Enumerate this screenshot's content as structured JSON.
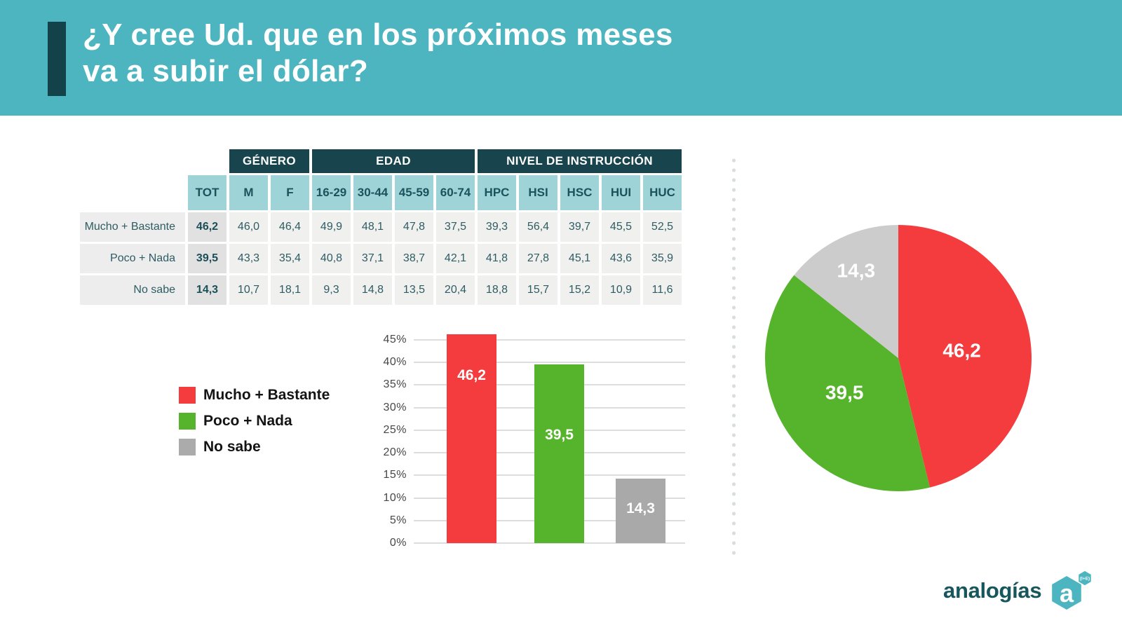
{
  "header": {
    "title_line1": "¿Y cree Ud. que en los próximos meses",
    "title_line2": "va a subir el dólar?"
  },
  "legend": {
    "items": [
      {
        "label": "Mucho + Bastante",
        "color": "#F43B3E"
      },
      {
        "label": "Poco + Nada",
        "color": "#56B42C"
      },
      {
        "label": "No sabe",
        "color": "#ABABAB"
      }
    ]
  },
  "chart_data": [
    {
      "type": "table",
      "group_headers": [
        {
          "label": "GÉNERO",
          "span": 2
        },
        {
          "label": "EDAD",
          "span": 4
        },
        {
          "label": "NIVEL DE INSTRUCCIÓN",
          "span": 5
        }
      ],
      "columns": [
        "TOT",
        "M",
        "F",
        "16-29",
        "30-44",
        "45-59",
        "60-74",
        "HPC",
        "HSI",
        "HSC",
        "HUI",
        "HUC"
      ],
      "rows": [
        {
          "label": "Mucho + Bastante",
          "values": [
            "46,2",
            "46,0",
            "46,4",
            "49,9",
            "48,1",
            "47,8",
            "37,5",
            "39,3",
            "56,4",
            "39,7",
            "45,5",
            "52,5"
          ]
        },
        {
          "label": "Poco + Nada",
          "values": [
            "39,5",
            "43,3",
            "35,4",
            "40,8",
            "37,1",
            "38,7",
            "42,1",
            "41,8",
            "27,8",
            "45,1",
            "43,6",
            "35,9"
          ]
        },
        {
          "label": "No sabe",
          "values": [
            "14,3",
            "10,7",
            "18,1",
            "9,3",
            "14,8",
            "13,5",
            "20,4",
            "18,8",
            "15,7",
            "15,2",
            "10,9",
            "11,6"
          ]
        }
      ]
    },
    {
      "type": "bar",
      "title": "",
      "xlabel": "",
      "ylabel": "",
      "categories": [
        "Mucho + Bastante",
        "Poco + Nada",
        "No sabe"
      ],
      "values": [
        46.2,
        39.5,
        14.3
      ],
      "value_labels": [
        "46,2",
        "39,5",
        "14,3"
      ],
      "colors": [
        "#F43B3E",
        "#56B42C",
        "#A9A9A9"
      ],
      "ylim": [
        0,
        45
      ],
      "ytick_step": 5,
      "ytick_suffix": "%",
      "grid": true,
      "legend_position": "left"
    },
    {
      "type": "pie",
      "labels": [
        "Mucho + Bastante",
        "Poco + Nada",
        "No sabe"
      ],
      "values": [
        46.2,
        39.5,
        14.3
      ],
      "value_labels": [
        "46,2",
        "39,5",
        "14,3"
      ],
      "colors": [
        "#F43B3E",
        "#56B42C",
        "#CCCCCC"
      ],
      "start_angle_deg": 0,
      "direction": "clockwise"
    }
  ],
  "footer": {
    "brand": "analogías",
    "brand_mark_letter": "a",
    "brand_mark_sub": "(I+E)"
  },
  "colors": {
    "header_teal": "#4CB5BF",
    "dark_teal": "#18454D",
    "light_teal": "#9ED3D8",
    "red": "#F43B3E",
    "green": "#56B42C",
    "gray_bar": "#A9A9A9",
    "gray_pie": "#CCCCCC"
  }
}
